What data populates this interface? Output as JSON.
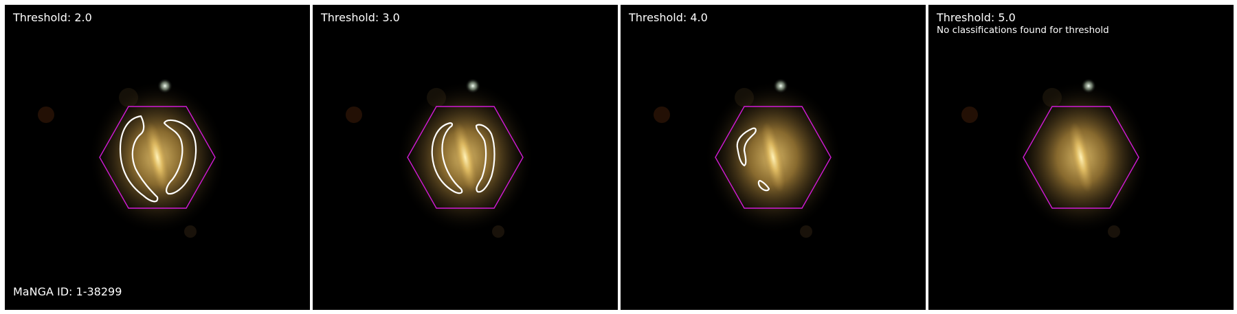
{
  "panels": [
    {
      "threshold_label": "Threshold: 2.0",
      "note": "",
      "contours": 2
    },
    {
      "threshold_label": "Threshold: 3.0",
      "note": "",
      "contours": 2
    },
    {
      "threshold_label": "Threshold: 4.0",
      "note": "",
      "contours": 2
    },
    {
      "threshold_label": "Threshold: 5.0",
      "note": "No classifications found for threshold",
      "contours": 0
    }
  ],
  "manga_id_label": "MaNGA ID: 1-38299",
  "colors": {
    "background": "#000000",
    "hexagon": "#d21bd6",
    "contour": "#ffffff",
    "galaxy_core": "#f0d58a",
    "galaxy_halo": "#b38a3c"
  }
}
